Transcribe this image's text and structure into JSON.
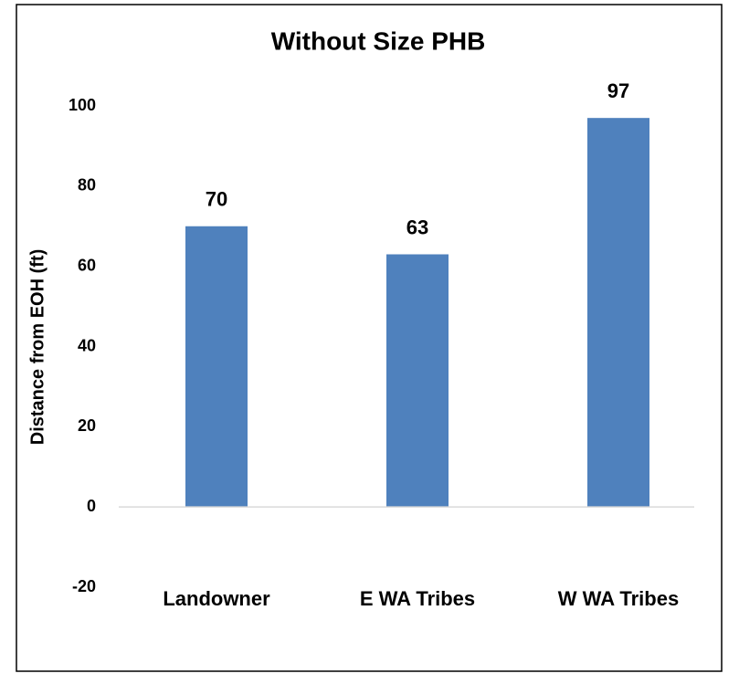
{
  "chart_data": {
    "type": "bar",
    "title": "Without Size PHB",
    "y_label": "Distance from EOH (ft)",
    "categories": [
      "Landowner",
      "E WA Tribes",
      "W WA Tribes"
    ],
    "values": [
      70,
      63,
      97
    ],
    "color": "#4f81bd",
    "ylim": [
      -20,
      100
    ],
    "yticks": [
      -20,
      0,
      20,
      40,
      60,
      80,
      100
    ],
    "grid": false,
    "data_labels": true
  }
}
